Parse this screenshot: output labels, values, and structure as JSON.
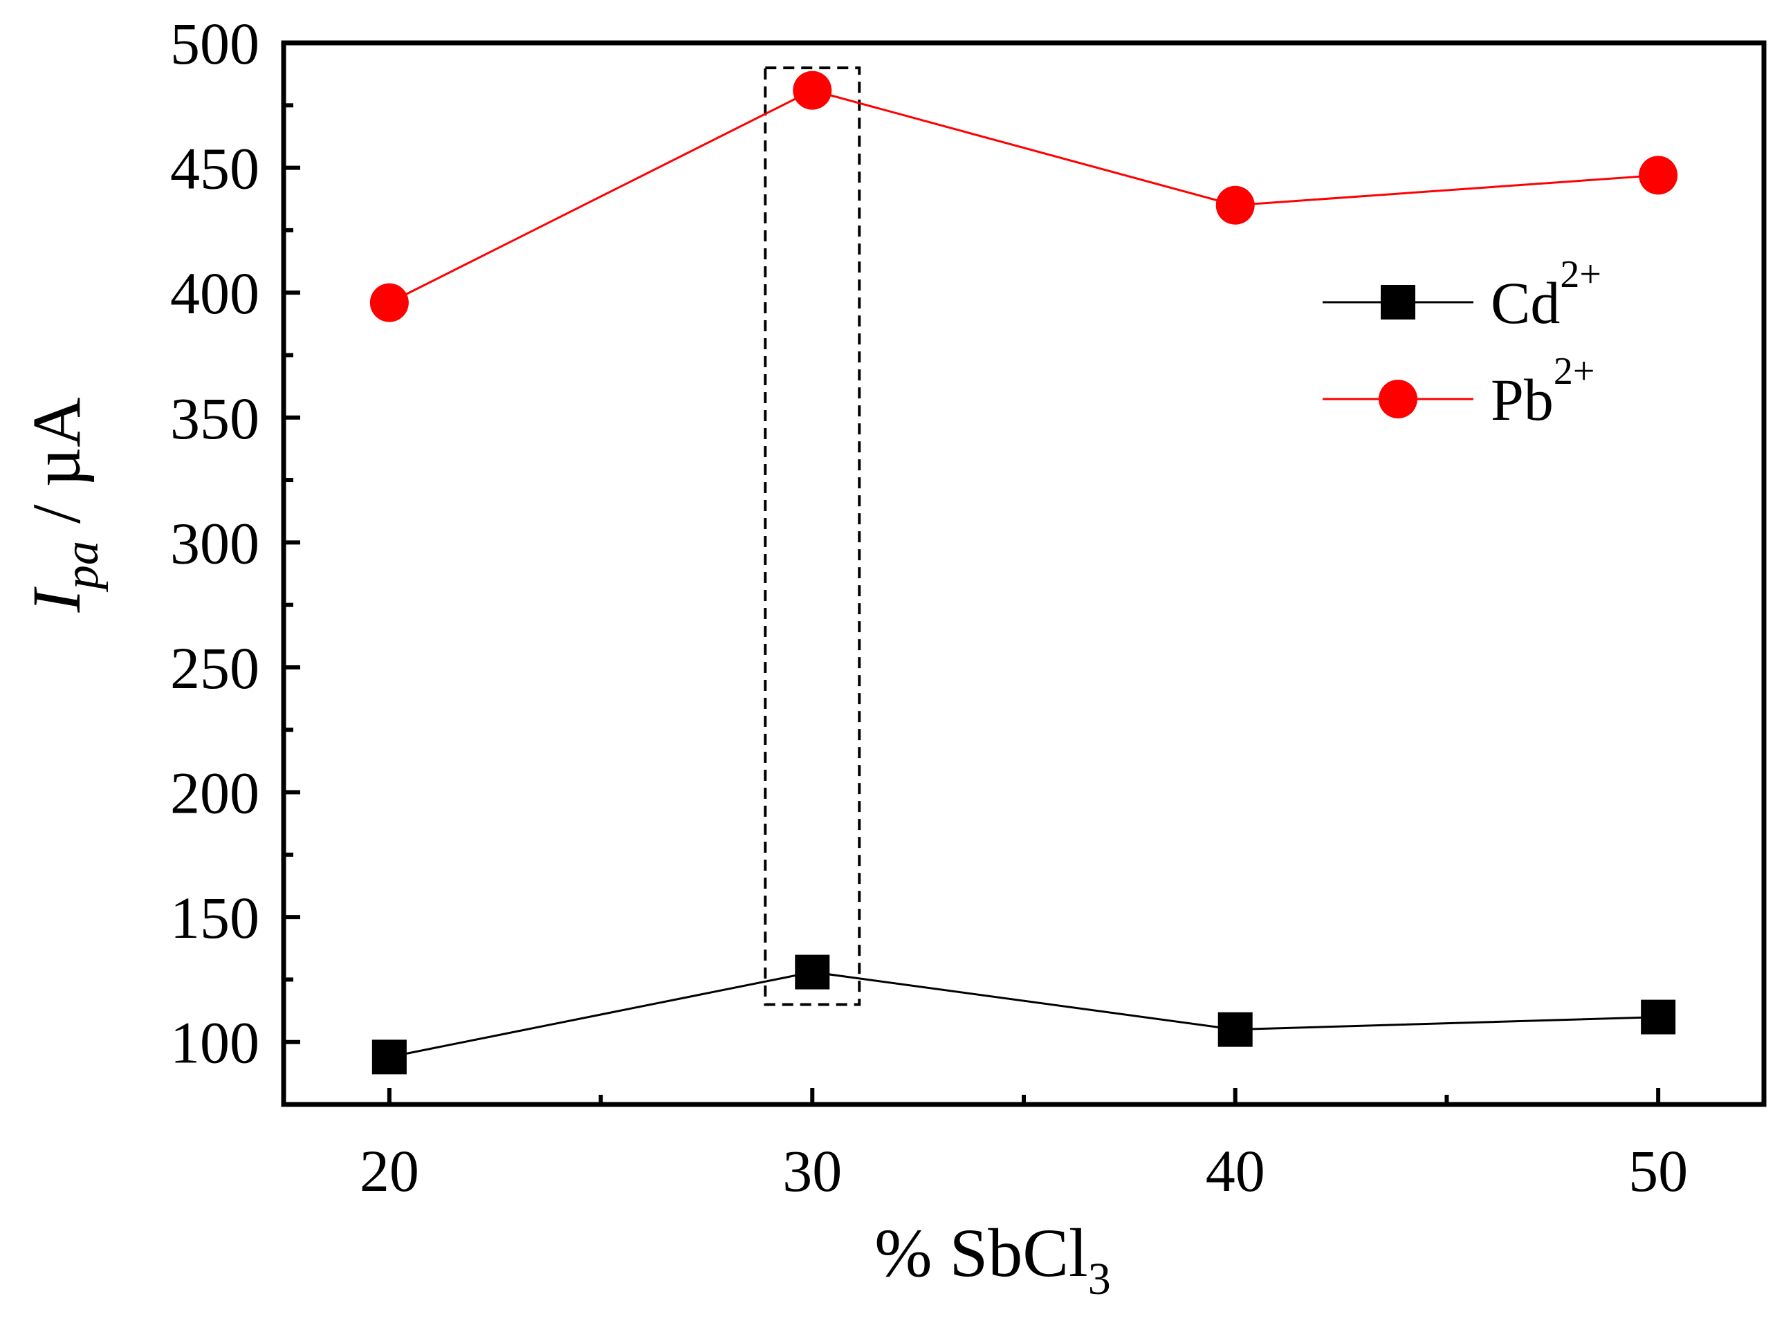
{
  "chart_data": {
    "type": "line",
    "x": [
      20,
      30,
      40,
      50
    ],
    "series": [
      {
        "name": "Cd",
        "name_sup": "2+",
        "values": [
          94,
          128,
          105,
          110
        ],
        "color": "#000000",
        "marker": "square"
      },
      {
        "name": "Pb",
        "name_sup": "2+",
        "values": [
          396,
          481,
          435,
          447
        ],
        "color": "#ff0000",
        "marker": "circle"
      }
    ],
    "xlabel": {
      "prefix": "% SbCl",
      "sub": "3"
    },
    "ylabel": {
      "main": "I",
      "sub": "pa",
      "rest": " / µA"
    },
    "xlim": [
      17.5,
      52.5
    ],
    "ylim": [
      75,
      500
    ],
    "x_ticks": [
      "20",
      "30",
      "40",
      "50"
    ],
    "y_ticks": [
      "100",
      "150",
      "200",
      "250",
      "300",
      "350",
      "400",
      "450",
      "500"
    ],
    "highlight": {
      "x": 30,
      "note": "dashed box around the 30% SbCl3 points"
    },
    "legend_position": "top-right"
  }
}
